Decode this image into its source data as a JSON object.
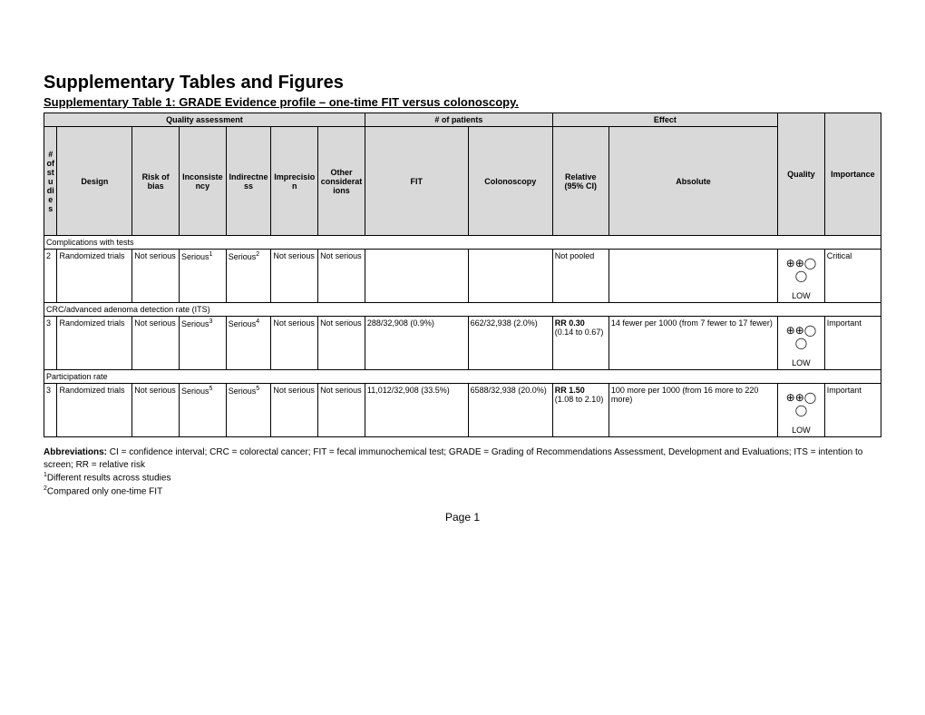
{
  "title": "Supplementary Tables and Figures",
  "subtitle": "Supplementary Table 1: GRADE Evidence profile – one-time FIT versus colonoscopy.",
  "group_headers": {
    "qa": "Quality assessment",
    "patients": "# of patients",
    "effect": "Effect",
    "quality": "Quality",
    "importance": "Importance"
  },
  "col_headers": {
    "studies": "# of studies",
    "design": "Design",
    "risk": "Risk of bias",
    "inconsistency": "Inconsistency",
    "indirectness": "Indirectness",
    "imprecision": "Imprecision",
    "other": "Other considerations",
    "fit": "FIT",
    "colonoscopy": "Colonoscopy",
    "relative": "Relative (95% CI)",
    "absolute": "Absolute"
  },
  "sections": {
    "s1": "Complications with tests",
    "s2": "CRC/advanced adenoma detection rate (ITS)",
    "s3": "Participation rate"
  },
  "row1": {
    "studies": "2",
    "design": "Randomized trials",
    "risk": "Not serious",
    "inconsistency": "Serious",
    "inconsistency_sup": "1",
    "indirectness": "Serious",
    "indirectness_sup": "2",
    "imprecision": "Not serious",
    "other": "Not serious",
    "fit": "",
    "colonoscopy": "",
    "relative": "Not pooled",
    "absolute": "",
    "quality_symbols": "⊕⊕◯◯",
    "quality_label": "LOW",
    "importance": "Critical"
  },
  "row2": {
    "studies": "3",
    "design": "Randomized trials",
    "risk": "Not serious",
    "inconsistency": "Serious",
    "inconsistency_sup": "3",
    "indirectness": "Serious",
    "indirectness_sup": "4",
    "imprecision": "Not serious",
    "other": "Not serious",
    "fit": "288/32,908 (0.9%)",
    "colonoscopy": "662/32,938 (2.0%)",
    "relative": "RR 0.30 (0.14 to 0.67)",
    "absolute": "14 fewer per 1000 (from 7 fewer to 17 fewer)",
    "quality_symbols": "⊕⊕◯◯",
    "quality_label": "LOW",
    "importance": "Important"
  },
  "row3": {
    "studies": "3",
    "design": "Randomized trials",
    "risk": "Not serious",
    "inconsistency": "Serious",
    "inconsistency_sup": "5",
    "indirectness": "Serious",
    "indirectness_sup": "5",
    "imprecision": "Not serious",
    "other": "Not serious",
    "fit": "11,012/32,908 (33.5%)",
    "colonoscopy": "6588/32,938 (20.0%)",
    "relative": "RR 1.50 (1.08 to 2.10)",
    "absolute": "100 more per 1000 (from 16 more to 220 more)",
    "quality_symbols": "⊕⊕◯◯",
    "quality_label": "LOW",
    "importance": "Important"
  },
  "footnotes": {
    "abbrev_label": "Abbreviations:",
    "abbrev_text": " CI = confidence interval; CRC = colorectal cancer; FIT = fecal immunochemical test; GRADE = Grading of Recommendations Assessment, Development and Evaluations; ITS = intention to screen; RR = relative risk",
    "f1_sup": "1",
    "f1": "Different results across studies",
    "f2_sup": "2",
    "f2": "Compared only one-time FIT"
  },
  "page_label": "Page ",
  "page_num": "1",
  "colwidths": {
    "studies": "14px",
    "design": "80px",
    "risk": "50px",
    "inconsistency": "50px",
    "indirectness": "48px",
    "imprecision": "50px",
    "other": "50px",
    "fit": "110px",
    "colonoscopy": "90px",
    "relative": "60px",
    "absolute": "180px",
    "quality": "50px",
    "importance": "60px"
  }
}
